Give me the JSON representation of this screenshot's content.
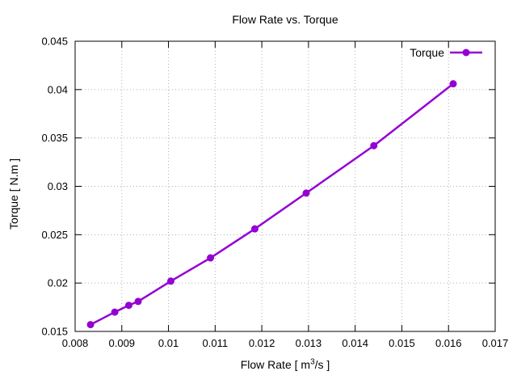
{
  "page": {
    "background": "#ffffff"
  },
  "chart_data": {
    "type": "line",
    "title": "Flow Rate vs. Torque",
    "xlabel": {
      "pre": "Flow Rate [ m",
      "sup": "3",
      "post": "/s ]"
    },
    "ylabel": "Torque [ N.m ]",
    "xlim": [
      0.008,
      0.017
    ],
    "ylim": [
      0.015,
      0.045
    ],
    "xticks": [
      "0.008",
      "0.009",
      "0.01",
      "0.011",
      "0.012",
      "0.013",
      "0.014",
      "0.015",
      "0.016",
      "0.017"
    ],
    "yticks": [
      "0.015",
      "0.02",
      "0.025",
      "0.03",
      "0.035",
      "0.04",
      "0.045"
    ],
    "grid": true,
    "legend": {
      "position": "inside-top-right",
      "entries": [
        {
          "label": "Torque",
          "color": "#9400d3",
          "marker": "filled-circle"
        }
      ]
    },
    "series": [
      {
        "name": "Torque",
        "color": "#9400d3",
        "points": [
          [
            0.00833,
            0.0157
          ],
          [
            0.00885,
            0.017
          ],
          [
            0.00915,
            0.0177
          ],
          [
            0.00935,
            0.0181
          ],
          [
            0.01005,
            0.0202
          ],
          [
            0.0109,
            0.0226
          ],
          [
            0.01185,
            0.0256
          ],
          [
            0.01295,
            0.0293
          ],
          [
            0.0144,
            0.0342
          ],
          [
            0.0161,
            0.0406
          ]
        ]
      }
    ],
    "colors": {
      "line": "#9400d3",
      "grid": "#b0b0b0",
      "axis": "#000000",
      "text": "#000000",
      "background": "#ffffff"
    }
  }
}
